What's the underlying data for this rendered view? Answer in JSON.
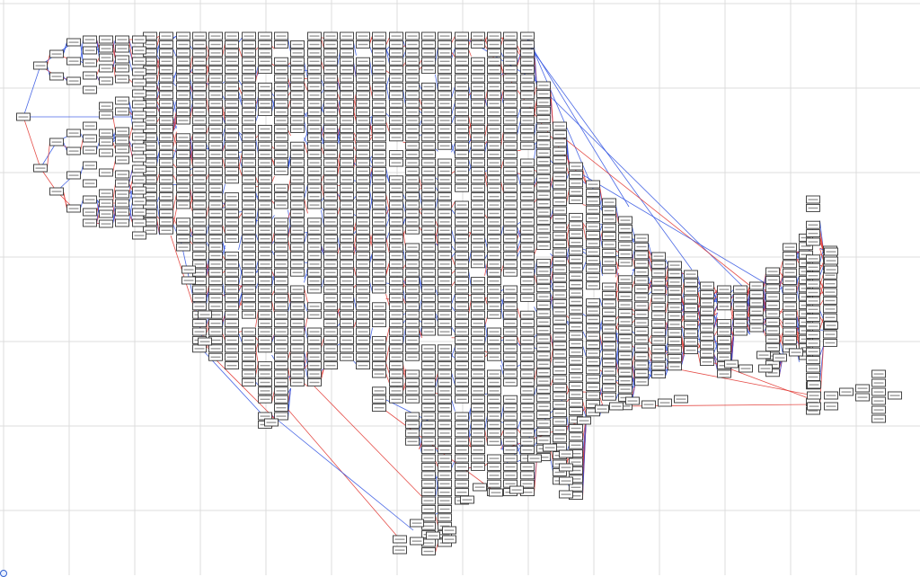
{
  "diagram": {
    "type": "decision-tree-graph",
    "colors": {
      "background": "#ffffff",
      "grid": "#dcdcdc",
      "edge_true": "#2a4de0",
      "edge_false": "#e0302a",
      "node_border": "#333333",
      "node_fill": "#ffffff"
    },
    "icons": [
      "zoom-handle-icon"
    ]
  }
}
